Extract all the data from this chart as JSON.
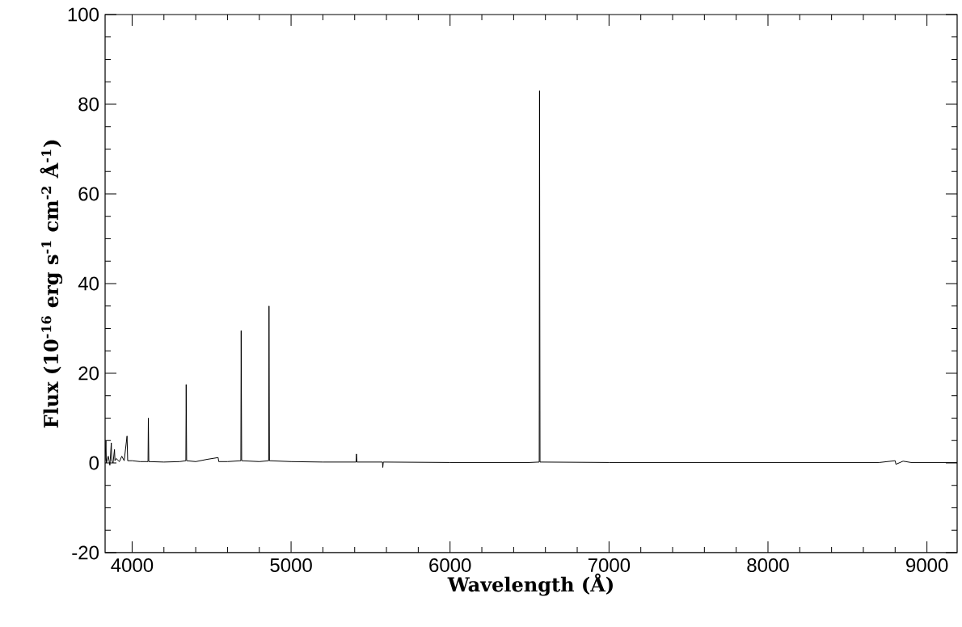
{
  "chart_data": {
    "type": "line",
    "xlabel": "Wavelength (Å)",
    "ylabel": "Flux (10$^{-16}$ erg s$^{-1}$ cm$^{-2}$ Å$^{-1}$)",
    "xlim": [
      3830,
      9190
    ],
    "ylim": [
      -20,
      100
    ],
    "xticks": [
      4000,
      5000,
      6000,
      7000,
      8000,
      9000
    ],
    "yticks": [
      -20,
      0,
      20,
      40,
      60,
      80,
      100
    ],
    "marker": "none",
    "line_style": "solid",
    "series": [
      {
        "color": "#000000",
        "x": [
          3830,
          3835,
          3838,
          3850,
          3860,
          3869,
          3872,
          3880,
          3889,
          3892,
          3900,
          3920,
          3935,
          3950,
          3968,
          3972,
          4000,
          4050,
          4100,
          4102,
          4105,
          4200,
          4300,
          4338,
          4340,
          4343,
          4400,
          4471,
          4541,
          4545,
          4600,
          4684,
          4686,
          4689,
          4800,
          4859,
          4861,
          4864,
          5000,
          5200,
          5409,
          5411,
          5414,
          5575,
          5577,
          5580,
          6000,
          6500,
          6561,
          6563,
          6566,
          7000,
          8000,
          8700,
          8800,
          8805,
          8850,
          8900,
          9190
        ],
        "values": [
          0.5,
          5,
          0,
          1.5,
          -0.5,
          4.5,
          0.5,
          0,
          3,
          0.5,
          1,
          0.3,
          1.5,
          0.5,
          6,
          0.5,
          0.5,
          0.3,
          0.3,
          10,
          0.3,
          0.2,
          0.3,
          0.5,
          17.5,
          0.5,
          0.3,
          0.8,
          1.2,
          0.3,
          0.3,
          0.5,
          29.5,
          0.5,
          0.3,
          0.5,
          35,
          0.5,
          0.3,
          0.2,
          0.2,
          2,
          0.2,
          0.2,
          -1,
          0.2,
          0.1,
          0.1,
          0.2,
          83,
          0.2,
          0.1,
          0.1,
          0.1,
          0.5,
          -0.3,
          0.4,
          0.1,
          0.1
        ]
      }
    ]
  }
}
